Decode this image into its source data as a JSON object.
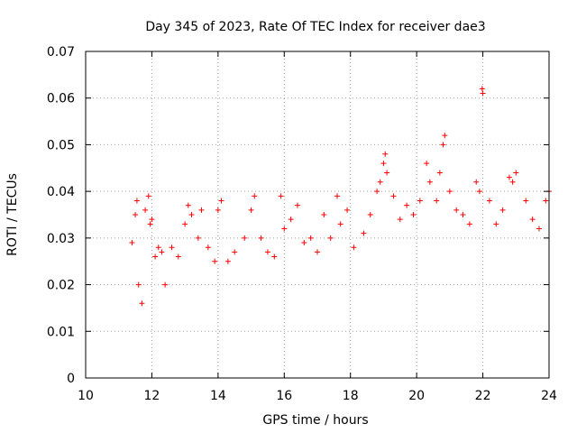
{
  "chart_data": {
    "type": "scatter",
    "title": "Day 345 of 2023, Rate Of TEC Index for receiver dae3",
    "xlabel": "GPS time / hours",
    "ylabel": "ROTI / TECUs",
    "xlim": [
      10,
      24
    ],
    "ylim": [
      0,
      0.07
    ],
    "x_ticks": [
      10,
      12,
      14,
      16,
      18,
      20,
      22,
      24
    ],
    "y_ticks": [
      0,
      0.01,
      0.02,
      0.03,
      0.04,
      0.05,
      0.06,
      0.07
    ],
    "x_tick_labels": [
      "10",
      "12",
      "14",
      "16",
      "18",
      "20",
      "22",
      "24"
    ],
    "y_tick_labels": [
      "0",
      "0.01",
      "0.02",
      "0.03",
      "0.04",
      "0.05",
      "0.06",
      "0.07"
    ],
    "grid": true,
    "marker": "+",
    "color": "#ff0000",
    "series": [
      {
        "name": "ROTI",
        "points": [
          [
            11.4,
            0.029
          ],
          [
            11.5,
            0.035
          ],
          [
            11.55,
            0.038
          ],
          [
            11.6,
            0.02
          ],
          [
            11.7,
            0.016
          ],
          [
            11.8,
            0.036
          ],
          [
            11.9,
            0.039
          ],
          [
            11.95,
            0.033
          ],
          [
            12.0,
            0.034
          ],
          [
            12.1,
            0.026
          ],
          [
            12.2,
            0.028
          ],
          [
            12.3,
            0.027
          ],
          [
            12.4,
            0.02
          ],
          [
            12.6,
            0.028
          ],
          [
            12.8,
            0.026
          ],
          [
            13.0,
            0.033
          ],
          [
            13.1,
            0.037
          ],
          [
            13.2,
            0.035
          ],
          [
            13.4,
            0.03
          ],
          [
            13.5,
            0.036
          ],
          [
            13.7,
            0.028
          ],
          [
            13.9,
            0.025
          ],
          [
            14.0,
            0.036
          ],
          [
            14.1,
            0.038
          ],
          [
            14.3,
            0.025
          ],
          [
            14.5,
            0.027
          ],
          [
            14.8,
            0.03
          ],
          [
            15.0,
            0.036
          ],
          [
            15.1,
            0.039
          ],
          [
            15.3,
            0.03
          ],
          [
            15.5,
            0.027
          ],
          [
            15.7,
            0.026
          ],
          [
            15.9,
            0.039
          ],
          [
            16.0,
            0.032
          ],
          [
            16.2,
            0.034
          ],
          [
            16.4,
            0.037
          ],
          [
            16.6,
            0.029
          ],
          [
            16.8,
            0.03
          ],
          [
            17.0,
            0.027
          ],
          [
            17.2,
            0.035
          ],
          [
            17.4,
            0.03
          ],
          [
            17.6,
            0.039
          ],
          [
            17.7,
            0.033
          ],
          [
            17.9,
            0.036
          ],
          [
            18.1,
            0.028
          ],
          [
            18.4,
            0.031
          ],
          [
            18.6,
            0.035
          ],
          [
            18.8,
            0.04
          ],
          [
            18.9,
            0.042
          ],
          [
            19.0,
            0.046
          ],
          [
            19.05,
            0.048
          ],
          [
            19.1,
            0.044
          ],
          [
            19.3,
            0.039
          ],
          [
            19.5,
            0.034
          ],
          [
            19.7,
            0.037
          ],
          [
            19.9,
            0.035
          ],
          [
            20.1,
            0.038
          ],
          [
            20.3,
            0.046
          ],
          [
            20.4,
            0.042
          ],
          [
            20.6,
            0.038
          ],
          [
            20.7,
            0.044
          ],
          [
            20.8,
            0.05
          ],
          [
            20.85,
            0.052
          ],
          [
            21.0,
            0.04
          ],
          [
            21.2,
            0.036
          ],
          [
            21.4,
            0.035
          ],
          [
            21.6,
            0.033
          ],
          [
            21.8,
            0.042
          ],
          [
            21.9,
            0.04
          ],
          [
            21.98,
            0.062
          ],
          [
            22.0,
            0.061
          ],
          [
            22.2,
            0.038
          ],
          [
            22.4,
            0.033
          ],
          [
            22.6,
            0.036
          ],
          [
            22.8,
            0.043
          ],
          [
            22.9,
            0.042
          ],
          [
            23.0,
            0.044
          ],
          [
            23.3,
            0.038
          ],
          [
            23.5,
            0.034
          ],
          [
            23.7,
            0.032
          ],
          [
            23.9,
            0.038
          ],
          [
            24.0,
            0.04
          ]
        ]
      }
    ]
  }
}
